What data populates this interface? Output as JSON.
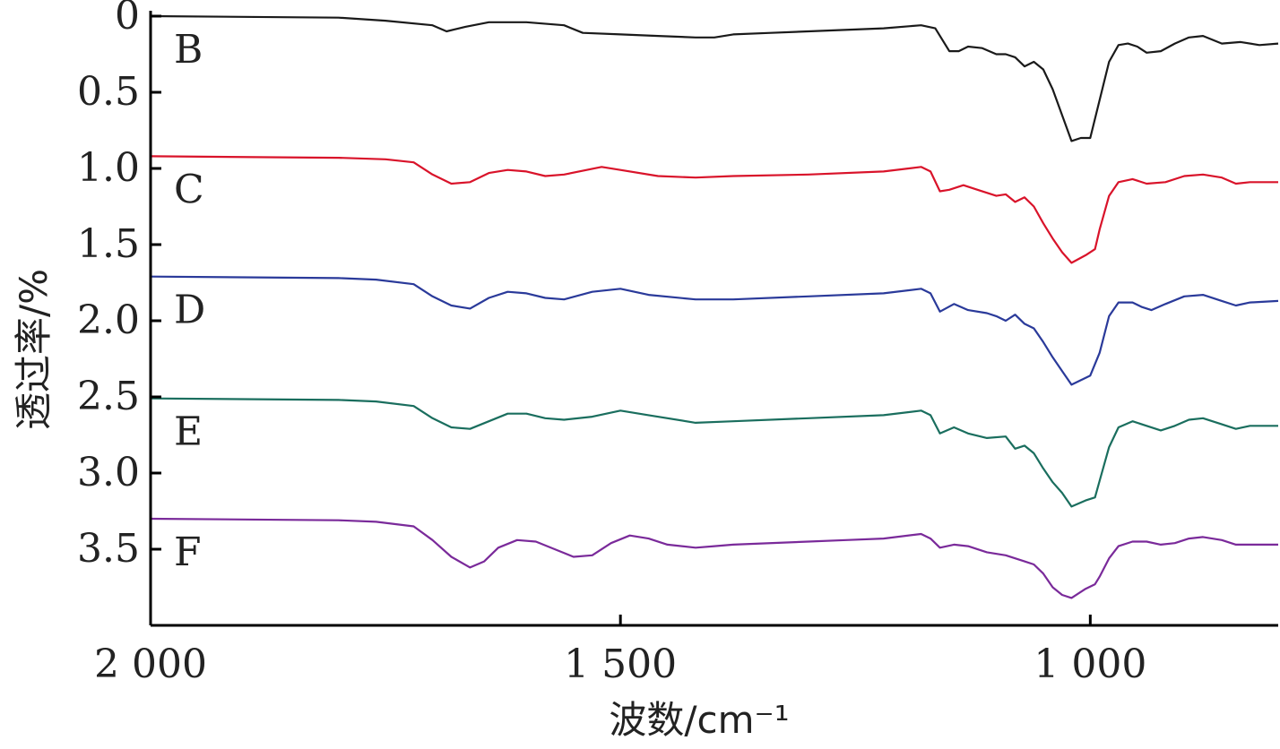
{
  "chart_data": {
    "type": "line",
    "xlabel": "波数/cm⁻¹",
    "ylabel": "透过率/%",
    "xlim": [
      2000,
      800
    ],
    "ylim": [
      0,
      4
    ],
    "x_ticks": [
      {
        "value": 2000,
        "label": "2 000"
      },
      {
        "value": 1500,
        "label": "1 500"
      },
      {
        "value": 1000,
        "label": "1 000"
      }
    ],
    "y_ticks": [
      {
        "value": 0,
        "label": "0"
      },
      {
        "value": 0.5,
        "label": "0.5"
      },
      {
        "value": 1.0,
        "label": "1.0"
      },
      {
        "value": 1.5,
        "label": "1.5"
      },
      {
        "value": 2.0,
        "label": "2.0"
      },
      {
        "value": 2.5,
        "label": "2.5"
      },
      {
        "value": 3.0,
        "label": "3.0"
      },
      {
        "value": 3.5,
        "label": "3.5"
      }
    ],
    "grid": false,
    "series": [
      {
        "name": "B",
        "color": "#1a1a1a",
        "points": [
          [
            2000,
            0.0
          ],
          [
            1800,
            0.01
          ],
          [
            1750,
            0.03
          ],
          [
            1700,
            0.06
          ],
          [
            1685,
            0.1
          ],
          [
            1665,
            0.07
          ],
          [
            1640,
            0.04
          ],
          [
            1600,
            0.04
          ],
          [
            1560,
            0.06
          ],
          [
            1540,
            0.11
          ],
          [
            1500,
            0.12
          ],
          [
            1460,
            0.13
          ],
          [
            1420,
            0.14
          ],
          [
            1400,
            0.14
          ],
          [
            1380,
            0.12
          ],
          [
            1340,
            0.11
          ],
          [
            1300,
            0.1
          ],
          [
            1220,
            0.08
          ],
          [
            1180,
            0.06
          ],
          [
            1165,
            0.08
          ],
          [
            1150,
            0.23
          ],
          [
            1140,
            0.23
          ],
          [
            1130,
            0.2
          ],
          [
            1115,
            0.21
          ],
          [
            1100,
            0.25
          ],
          [
            1090,
            0.25
          ],
          [
            1080,
            0.27
          ],
          [
            1070,
            0.33
          ],
          [
            1060,
            0.3
          ],
          [
            1050,
            0.35
          ],
          [
            1040,
            0.48
          ],
          [
            1030,
            0.65
          ],
          [
            1020,
            0.82
          ],
          [
            1010,
            0.8
          ],
          [
            1000,
            0.8
          ],
          [
            990,
            0.55
          ],
          [
            980,
            0.3
          ],
          [
            970,
            0.19
          ],
          [
            960,
            0.18
          ],
          [
            950,
            0.2
          ],
          [
            940,
            0.24
          ],
          [
            925,
            0.23
          ],
          [
            910,
            0.18
          ],
          [
            895,
            0.14
          ],
          [
            880,
            0.13
          ],
          [
            860,
            0.18
          ],
          [
            840,
            0.17
          ],
          [
            820,
            0.19
          ],
          [
            800,
            0.18
          ]
        ]
      },
      {
        "name": "C",
        "color": "#d9132a",
        "points": [
          [
            2000,
            0.92
          ],
          [
            1800,
            0.93
          ],
          [
            1750,
            0.94
          ],
          [
            1720,
            0.96
          ],
          [
            1700,
            1.04
          ],
          [
            1680,
            1.1
          ],
          [
            1660,
            1.09
          ],
          [
            1640,
            1.03
          ],
          [
            1620,
            1.01
          ],
          [
            1600,
            1.02
          ],
          [
            1580,
            1.05
          ],
          [
            1560,
            1.04
          ],
          [
            1520,
            0.99
          ],
          [
            1500,
            1.01
          ],
          [
            1460,
            1.05
          ],
          [
            1420,
            1.06
          ],
          [
            1380,
            1.05
          ],
          [
            1300,
            1.04
          ],
          [
            1220,
            1.02
          ],
          [
            1180,
            0.99
          ],
          [
            1170,
            1.02
          ],
          [
            1160,
            1.15
          ],
          [
            1150,
            1.14
          ],
          [
            1135,
            1.11
          ],
          [
            1120,
            1.14
          ],
          [
            1100,
            1.18
          ],
          [
            1090,
            1.17
          ],
          [
            1080,
            1.22
          ],
          [
            1070,
            1.19
          ],
          [
            1060,
            1.25
          ],
          [
            1050,
            1.36
          ],
          [
            1040,
            1.46
          ],
          [
            1030,
            1.55
          ],
          [
            1020,
            1.62
          ],
          [
            1005,
            1.57
          ],
          [
            995,
            1.53
          ],
          [
            990,
            1.4
          ],
          [
            980,
            1.18
          ],
          [
            970,
            1.09
          ],
          [
            955,
            1.07
          ],
          [
            940,
            1.1
          ],
          [
            920,
            1.09
          ],
          [
            900,
            1.05
          ],
          [
            880,
            1.04
          ],
          [
            860,
            1.06
          ],
          [
            845,
            1.1
          ],
          [
            830,
            1.09
          ],
          [
            800,
            1.09
          ]
        ]
      },
      {
        "name": "D",
        "color": "#2a3a9a",
        "points": [
          [
            2000,
            1.71
          ],
          [
            1800,
            1.72
          ],
          [
            1760,
            1.73
          ],
          [
            1720,
            1.76
          ],
          [
            1700,
            1.84
          ],
          [
            1680,
            1.9
          ],
          [
            1660,
            1.92
          ],
          [
            1640,
            1.85
          ],
          [
            1620,
            1.81
          ],
          [
            1600,
            1.82
          ],
          [
            1580,
            1.85
          ],
          [
            1560,
            1.86
          ],
          [
            1530,
            1.81
          ],
          [
            1500,
            1.79
          ],
          [
            1470,
            1.83
          ],
          [
            1420,
            1.86
          ],
          [
            1380,
            1.86
          ],
          [
            1300,
            1.84
          ],
          [
            1220,
            1.82
          ],
          [
            1180,
            1.79
          ],
          [
            1170,
            1.82
          ],
          [
            1160,
            1.94
          ],
          [
            1145,
            1.89
          ],
          [
            1130,
            1.93
          ],
          [
            1110,
            1.95
          ],
          [
            1100,
            1.97
          ],
          [
            1090,
            2.0
          ],
          [
            1080,
            1.96
          ],
          [
            1070,
            2.02
          ],
          [
            1060,
            2.05
          ],
          [
            1050,
            2.14
          ],
          [
            1040,
            2.24
          ],
          [
            1030,
            2.33
          ],
          [
            1020,
            2.42
          ],
          [
            1000,
            2.36
          ],
          [
            990,
            2.21
          ],
          [
            980,
            1.97
          ],
          [
            970,
            1.88
          ],
          [
            955,
            1.88
          ],
          [
            945,
            1.91
          ],
          [
            935,
            1.93
          ],
          [
            920,
            1.89
          ],
          [
            900,
            1.84
          ],
          [
            880,
            1.83
          ],
          [
            860,
            1.87
          ],
          [
            845,
            1.9
          ],
          [
            830,
            1.88
          ],
          [
            800,
            1.87
          ]
        ]
      },
      {
        "name": "E",
        "color": "#1a6e5e",
        "points": [
          [
            2000,
            2.51
          ],
          [
            1800,
            2.52
          ],
          [
            1760,
            2.53
          ],
          [
            1720,
            2.56
          ],
          [
            1700,
            2.64
          ],
          [
            1680,
            2.7
          ],
          [
            1660,
            2.71
          ],
          [
            1640,
            2.66
          ],
          [
            1620,
            2.61
          ],
          [
            1600,
            2.61
          ],
          [
            1580,
            2.64
          ],
          [
            1560,
            2.65
          ],
          [
            1530,
            2.63
          ],
          [
            1500,
            2.59
          ],
          [
            1470,
            2.62
          ],
          [
            1420,
            2.67
          ],
          [
            1380,
            2.66
          ],
          [
            1300,
            2.64
          ],
          [
            1220,
            2.62
          ],
          [
            1180,
            2.59
          ],
          [
            1170,
            2.62
          ],
          [
            1160,
            2.74
          ],
          [
            1145,
            2.7
          ],
          [
            1130,
            2.74
          ],
          [
            1110,
            2.77
          ],
          [
            1090,
            2.76
          ],
          [
            1080,
            2.84
          ],
          [
            1070,
            2.82
          ],
          [
            1060,
            2.87
          ],
          [
            1050,
            2.97
          ],
          [
            1040,
            3.06
          ],
          [
            1030,
            3.13
          ],
          [
            1020,
            3.22
          ],
          [
            1005,
            3.18
          ],
          [
            995,
            3.16
          ],
          [
            990,
            3.05
          ],
          [
            980,
            2.83
          ],
          [
            970,
            2.7
          ],
          [
            955,
            2.66
          ],
          [
            940,
            2.69
          ],
          [
            925,
            2.72
          ],
          [
            910,
            2.69
          ],
          [
            895,
            2.65
          ],
          [
            880,
            2.64
          ],
          [
            860,
            2.68
          ],
          [
            845,
            2.71
          ],
          [
            830,
            2.69
          ],
          [
            800,
            2.69
          ]
        ]
      },
      {
        "name": "F",
        "color": "#7a2a9a",
        "points": [
          [
            2000,
            3.3
          ],
          [
            1800,
            3.31
          ],
          [
            1760,
            3.32
          ],
          [
            1720,
            3.35
          ],
          [
            1700,
            3.44
          ],
          [
            1680,
            3.55
          ],
          [
            1660,
            3.62
          ],
          [
            1645,
            3.58
          ],
          [
            1630,
            3.49
          ],
          [
            1610,
            3.44
          ],
          [
            1590,
            3.45
          ],
          [
            1570,
            3.5
          ],
          [
            1550,
            3.55
          ],
          [
            1530,
            3.54
          ],
          [
            1510,
            3.46
          ],
          [
            1490,
            3.41
          ],
          [
            1470,
            3.43
          ],
          [
            1450,
            3.47
          ],
          [
            1420,
            3.49
          ],
          [
            1400,
            3.48
          ],
          [
            1380,
            3.47
          ],
          [
            1300,
            3.45
          ],
          [
            1260,
            3.44
          ],
          [
            1220,
            3.43
          ],
          [
            1180,
            3.4
          ],
          [
            1170,
            3.43
          ],
          [
            1160,
            3.49
          ],
          [
            1145,
            3.47
          ],
          [
            1130,
            3.48
          ],
          [
            1110,
            3.52
          ],
          [
            1090,
            3.54
          ],
          [
            1080,
            3.56
          ],
          [
            1070,
            3.58
          ],
          [
            1060,
            3.6
          ],
          [
            1050,
            3.66
          ],
          [
            1040,
            3.75
          ],
          [
            1030,
            3.8
          ],
          [
            1020,
            3.82
          ],
          [
            1005,
            3.76
          ],
          [
            995,
            3.73
          ],
          [
            990,
            3.68
          ],
          [
            980,
            3.56
          ],
          [
            970,
            3.48
          ],
          [
            955,
            3.45
          ],
          [
            940,
            3.45
          ],
          [
            925,
            3.47
          ],
          [
            910,
            3.46
          ],
          [
            895,
            3.43
          ],
          [
            880,
            3.42
          ],
          [
            860,
            3.44
          ],
          [
            845,
            3.47
          ],
          [
            830,
            3.47
          ],
          [
            800,
            3.47
          ]
        ]
      }
    ]
  }
}
